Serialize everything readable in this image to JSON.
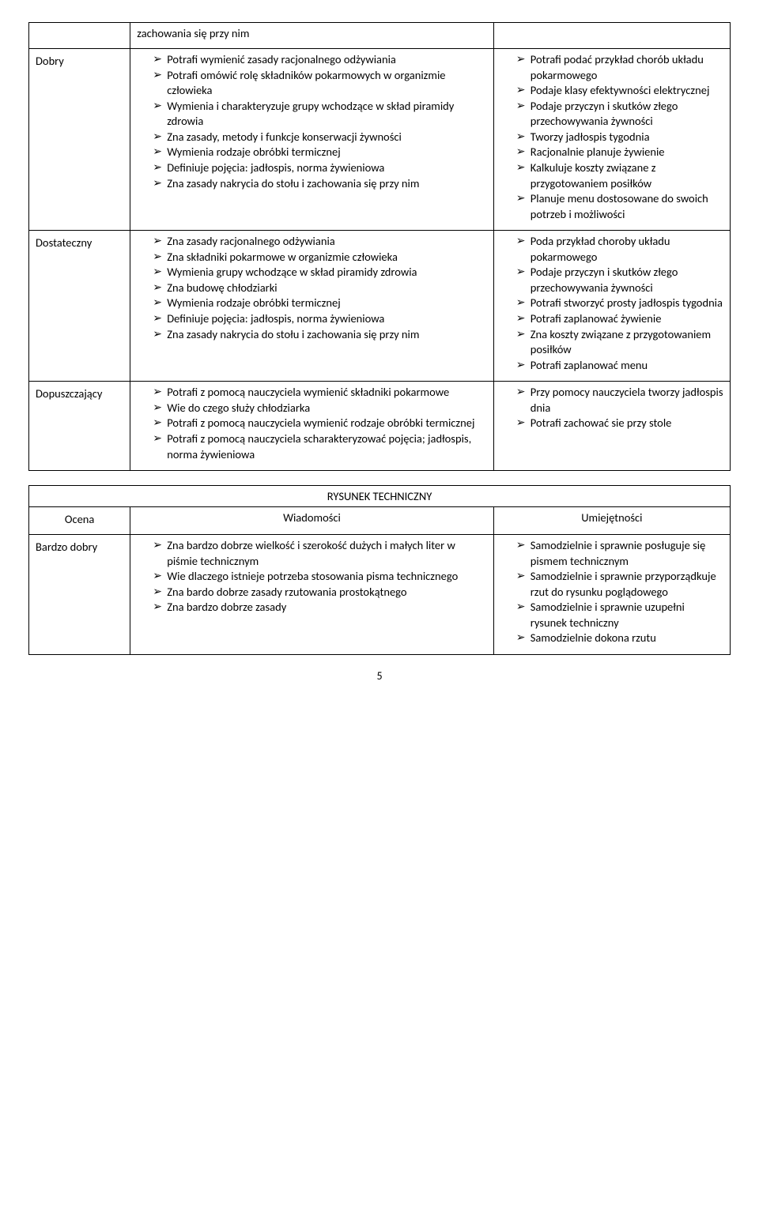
{
  "page_number": "5",
  "table1": {
    "rows": [
      {
        "label": "",
        "middle": [
          "zachowania się przy nim"
        ],
        "right": []
      },
      {
        "label": "Dobry",
        "middle": [
          "Potrafi wymienić zasady racjonalnego odżywiania",
          "Potrafi omówić rolę składników pokarmowych w organizmie człowieka",
          "Wymienia i charakteryzuje grupy wchodzące w skład piramidy zdrowia",
          "Zna zasady, metody i funkcje konserwacji żywności",
          "Wymienia rodzaje obróbki termicznej",
          "Definiuje pojęcia: jadłospis, norma żywieniowa",
          "Zna zasady nakrycia do stołu i zachowania się przy nim"
        ],
        "right": [
          "Potrafi podać przykład chorób układu pokarmowego",
          "Podaje klasy efektywności elektrycznej",
          "Podaje przyczyn i skutków złego przechowywania żywności",
          "Tworzy jadłospis tygodnia",
          "Racjonalnie planuje żywienie",
          "Kalkuluje koszty związane z przygotowaniem posiłków",
          "Planuje menu dostosowane do swoich potrzeb i możliwości"
        ]
      },
      {
        "label": "Dostateczny",
        "middle": [
          "Zna zasady racjonalnego odżywiania",
          "Zna składniki pokarmowe w organizmie człowieka",
          "Wymienia grupy wchodzące w skład piramidy zdrowia",
          "Zna budowę chłodziarki",
          "Wymienia rodzaje obróbki termicznej",
          "Definiuje pojęcia: jadłospis, norma żywieniowa",
          "Zna zasady nakrycia do stołu i zachowania się przy nim"
        ],
        "right": [
          "Poda przykład choroby układu pokarmowego",
          "Podaje przyczyn i skutków złego przechowywania żywności",
          "Potrafi stworzyć prosty jadłospis tygodnia",
          "Potrafi zaplanować żywienie",
          "Zna koszty związane z przygotowaniem posiłków",
          "Potrafi zaplanować menu"
        ]
      },
      {
        "label": "Dopuszczający",
        "middle": [
          "Potrafi z pomocą nauczyciela wymienić składniki pokarmowe",
          "Wie do czego służy chłodziarka",
          "Potrafi z pomocą nauczyciela wymienić rodzaje obróbki termicznej",
          "Potrafi z pomocą nauczyciela scharakteryzować pojęcia; jadłospis, norma żywieniowa"
        ],
        "right": [
          "Przy pomocy nauczyciela tworzy jadłospis dnia",
          "Potrafi zachować sie przy stole"
        ]
      }
    ]
  },
  "table2": {
    "title": "RYSUNEK TECHNICZNY",
    "headers": [
      "Ocena",
      "Wiadomości",
      "Umiejętności"
    ],
    "rows": [
      {
        "label": "Bardzo dobry",
        "middle": [
          "Zna bardzo dobrze wielkość i szerokość dużych i małych liter w piśmie technicznym",
          "Wie dlaczego istnieje potrzeba stosowania pisma technicznego",
          "Zna bardo dobrze zasady rzutowania prostokątnego",
          "Zna bardzo dobrze zasady"
        ],
        "right": [
          "Samodzielnie i sprawnie posługuje się pismem technicznym",
          "Samodzielnie i sprawnie przyporządkuje rzut do rysunku poglądowego",
          "Samodzielnie i sprawnie uzupełni rysunek techniczny",
          "Samodzielnie dokona rzutu"
        ]
      }
    ]
  }
}
